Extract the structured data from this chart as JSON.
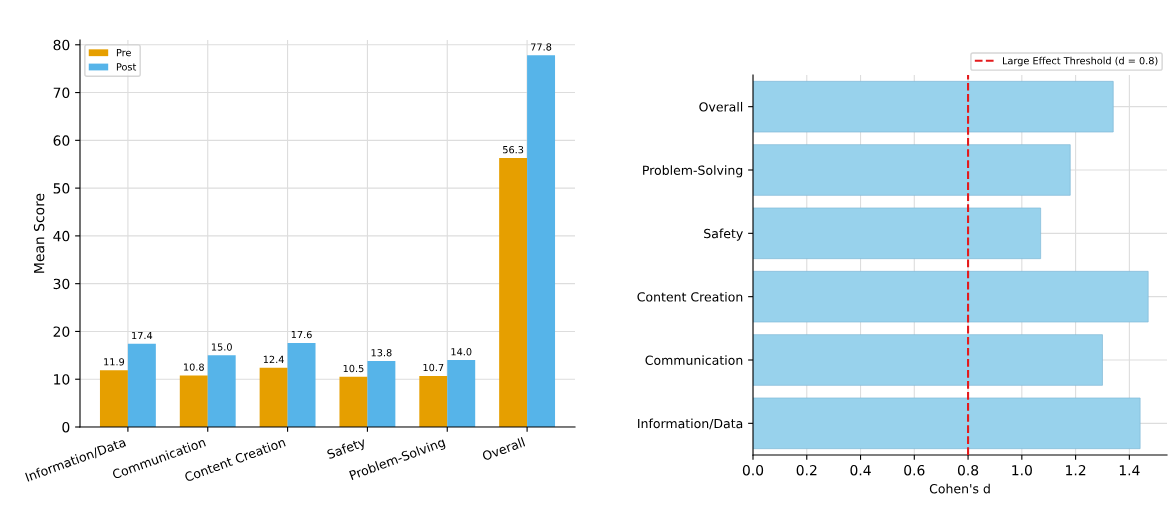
{
  "chart_data": [
    {
      "type": "bar",
      "ylabel": "Mean Score",
      "categories": [
        "Information/Data",
        "Communication",
        "Content Creation",
        "Safety",
        "Problem-Solving",
        "Overall"
      ],
      "series": [
        {
          "name": "Pre",
          "color": "#e69f00",
          "values": [
            11.9,
            10.8,
            12.4,
            10.5,
            10.7,
            56.3
          ],
          "value_labels": [
            "11.9",
            "10.8",
            "12.4",
            "10.5",
            "10.7",
            "56.3"
          ]
        },
        {
          "name": "Post",
          "color": "#56b4e9",
          "values": [
            17.4,
            15.0,
            17.6,
            13.8,
            14.0,
            77.8
          ],
          "value_labels": [
            "17.4",
            "15.0",
            "17.6",
            "13.8",
            "14.0",
            "77.8"
          ]
        }
      ],
      "ylim": [
        0,
        81
      ],
      "yticks": [
        0,
        10,
        20,
        30,
        40,
        50,
        60,
        70,
        80
      ],
      "grid": true,
      "legend": "top left"
    },
    {
      "type": "bar",
      "orientation": "horizontal",
      "xlabel": "Cohen's d",
      "categories": [
        "Overall",
        "Problem-Solving",
        "Safety",
        "Content Creation",
        "Communication",
        "Information/Data"
      ],
      "values": [
        1.34,
        1.18,
        1.07,
        1.47,
        1.3,
        1.44
      ],
      "color": "#98d2ec",
      "xlim": [
        0,
        1.54
      ],
      "xticks": [
        {
          "value": 0,
          "label": "0.0"
        },
        0.2,
        0.4,
        0.6,
        0.8,
        {
          "value": 1,
          "label": "1.0"
        },
        1.2,
        1.4
      ],
      "ref_lines": [
        {
          "axis": "x",
          "value": 0.8,
          "label": "Large Effect Threshold (d = 0.8)",
          "color": "#e41a1c",
          "line_style": "dashed"
        }
      ],
      "grid": true,
      "legend": "top right"
    }
  ]
}
